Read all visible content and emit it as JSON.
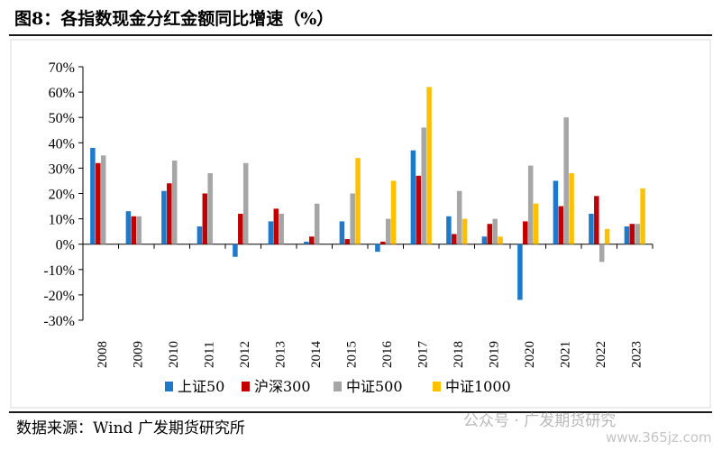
{
  "title": "图8：各指数现金分红金额同比增速（%）",
  "source": "数据来源：Wind 广发期货研究所",
  "watermark": "公众号 · 广发期货研究",
  "watermark_url": "www.365jz.com",
  "colors": {
    "上证50": "#1f78c8",
    "沪深300": "#c00000",
    "中证500": "#a6a6a6",
    "中证1000": "#ffc000"
  },
  "chart_data": {
    "type": "bar",
    "title": "",
    "xlabel": "",
    "ylabel": "",
    "ylim": [
      -30,
      70
    ],
    "yticks": [
      -30,
      -20,
      -10,
      0,
      10,
      20,
      30,
      40,
      50,
      60,
      70
    ],
    "ytick_format": "percent",
    "grid": false,
    "legend": "bottom",
    "categories": [
      "2008",
      "2009",
      "2010",
      "2011",
      "2012",
      "2013",
      "2014",
      "2015",
      "2016",
      "2017",
      "2018",
      "2019",
      "2020",
      "2021",
      "2022",
      "2023"
    ],
    "series": [
      {
        "name": "上证50",
        "color": "#1f78c8",
        "values": [
          38,
          13,
          21,
          7,
          -5,
          9,
          1,
          9,
          -3,
          37,
          11,
          3,
          -22,
          25,
          12,
          7
        ]
      },
      {
        "name": "沪深300",
        "color": "#c00000",
        "values": [
          32,
          11,
          24,
          20,
          12,
          14,
          3,
          2,
          1,
          27,
          4,
          8,
          9,
          15,
          19,
          8
        ]
      },
      {
        "name": "中证500",
        "color": "#a6a6a6",
        "values": [
          35,
          11,
          33,
          28,
          32,
          12,
          16,
          20,
          10,
          46,
          21,
          10,
          31,
          50,
          -7,
          8
        ]
      },
      {
        "name": "中证1000",
        "color": "#ffc000",
        "values": [
          null,
          null,
          null,
          null,
          null,
          null,
          null,
          34,
          25,
          62,
          10,
          3,
          16,
          28,
          6,
          22
        ]
      }
    ]
  }
}
